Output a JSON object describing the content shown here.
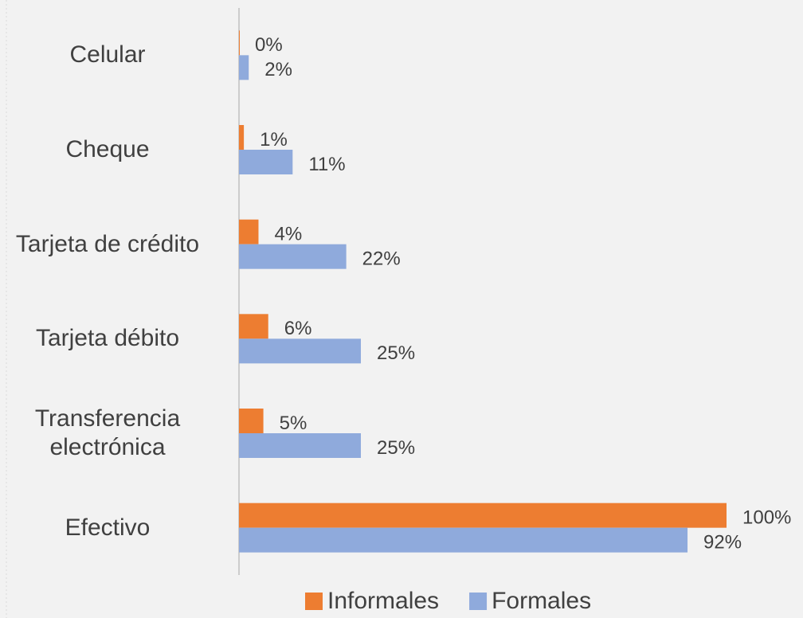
{
  "chart_data": {
    "type": "bar",
    "orientation": "horizontal",
    "categories": [
      "Celular",
      "Cheque",
      "Tarjeta de crédito",
      "Tarjeta débito",
      "Transferencia electrónica",
      "Efectivo"
    ],
    "series": [
      {
        "name": "Informales",
        "color": "#ed7d31",
        "values": [
          0,
          1,
          4,
          6,
          5,
          100
        ],
        "value_labels": [
          "0%",
          "1%",
          "4%",
          "6%",
          "5%",
          "100%"
        ]
      },
      {
        "name": "Formales",
        "color": "#8faadc",
        "values": [
          2,
          11,
          22,
          25,
          25,
          92
        ],
        "value_labels": [
          "2%",
          "11%",
          "22%",
          "25%",
          "25%",
          "92%"
        ]
      }
    ],
    "legend": "bottom"
  }
}
